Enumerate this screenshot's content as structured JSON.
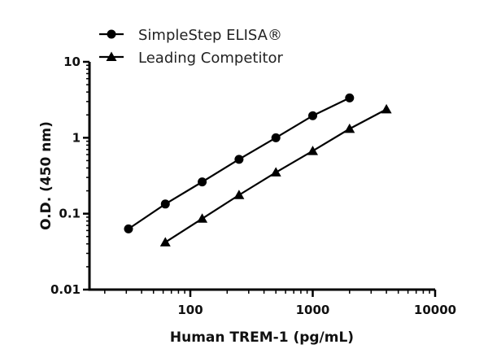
{
  "chart_data": {
    "type": "line",
    "title": "",
    "xlabel": "Human TREM-1 (pg/mL)",
    "ylabel": "O.D. (450 nm)",
    "xscale": "log",
    "yscale": "log",
    "xlim": [
      15,
      10000
    ],
    "ylim": [
      0.01,
      10
    ],
    "xticks": [
      100,
      1000,
      10000
    ],
    "xtick_labels": [
      "100",
      "1000",
      "10000"
    ],
    "yticks": [
      0.01,
      0.1,
      1,
      10
    ],
    "ytick_labels": [
      "0.01",
      "0.1",
      "1",
      "10"
    ],
    "grid": false,
    "legend_position": "top-left",
    "series": [
      {
        "name": "SimpleStep ELISA®",
        "marker": "circle",
        "color": "#000000",
        "x": [
          31.25,
          62.5,
          125,
          250,
          500,
          1000,
          2000
        ],
        "y": [
          0.063,
          0.134,
          0.262,
          0.52,
          1.0,
          1.95,
          3.35
        ]
      },
      {
        "name": "Leading Competitor",
        "marker": "triangle",
        "color": "#000000",
        "x": [
          62.5,
          125,
          250,
          500,
          1000,
          2000,
          4000
        ],
        "y": [
          0.042,
          0.086,
          0.176,
          0.35,
          0.67,
          1.31,
          2.37
        ]
      }
    ]
  }
}
